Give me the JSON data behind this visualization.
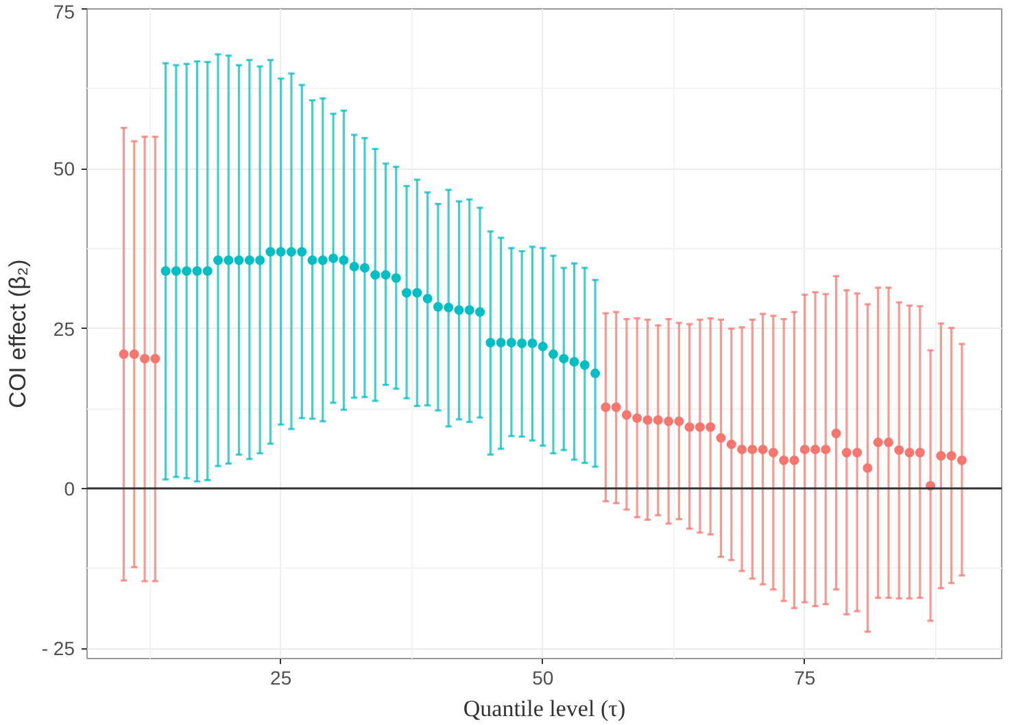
{
  "chart_data": {
    "type": "scatter",
    "xlabel": "Quantile level (τ)",
    "ylabel": "COI effect (β₂)",
    "xlim": [
      6.5,
      93.8
    ],
    "ylim": [
      -26.6,
      75
    ],
    "xticks": [
      25,
      50,
      75
    ],
    "yticks": [
      {
        "value": -25,
        "label": "- 25"
      },
      0,
      25,
      50,
      75
    ],
    "grid": true,
    "marker": "circle",
    "ref_lines": [
      {
        "axis": "y",
        "value": 0,
        "color": "#333333"
      }
    ],
    "series": [
      {
        "color": "#f8766d",
        "x": [
          10,
          11,
          12,
          13,
          56,
          57,
          58,
          59,
          60,
          61,
          62,
          63,
          64,
          65,
          66,
          67,
          68,
          69,
          70,
          71,
          72,
          73,
          74,
          75,
          76,
          77,
          78,
          79,
          80,
          81,
          82,
          83,
          84,
          85,
          86,
          87,
          88,
          89,
          90
        ],
        "values": [
          21.0,
          21.0,
          20.3,
          20.3,
          12.7,
          12.7,
          11.5,
          11.0,
          10.7,
          10.7,
          10.5,
          10.5,
          9.6,
          9.6,
          9.6,
          7.9,
          6.9,
          6.1,
          6.1,
          6.1,
          5.6,
          4.4,
          4.4,
          6.1,
          6.1,
          6.1,
          8.6,
          5.6,
          5.6,
          3.2,
          7.2,
          7.2,
          6.0,
          5.6,
          5.6,
          0.4,
          5.1,
          5.1,
          4.4
        ],
        "errors": [
          [
            -14.4,
            56.4
          ],
          [
            -12.3,
            54.3
          ],
          [
            -14.5,
            55.0
          ],
          [
            -14.5,
            55.0
          ],
          [
            -2.0,
            27.4
          ],
          [
            -2.3,
            27.6
          ],
          [
            -3.3,
            26.5
          ],
          [
            -4.5,
            26.6
          ],
          [
            -4.9,
            26.4
          ],
          [
            -4.2,
            25.5
          ],
          [
            -5.5,
            26.5
          ],
          [
            -4.8,
            25.9
          ],
          [
            -6.3,
            25.7
          ],
          [
            -6.9,
            26.4
          ],
          [
            -7.2,
            26.6
          ],
          [
            -10.7,
            26.4
          ],
          [
            -11.2,
            25.0
          ],
          [
            -12.9,
            25.2
          ],
          [
            -14.1,
            26.4
          ],
          [
            -15.0,
            27.3
          ],
          [
            -15.8,
            27.0
          ],
          [
            -17.6,
            26.5
          ],
          [
            -18.7,
            27.6
          ],
          [
            -17.8,
            30.3
          ],
          [
            -18.4,
            30.7
          ],
          [
            -18.1,
            30.4
          ],
          [
            -15.8,
            33.2
          ],
          [
            -19.7,
            31.0
          ],
          [
            -19.2,
            30.5
          ],
          [
            -22.4,
            28.8
          ],
          [
            -17.1,
            31.4
          ],
          [
            -17.1,
            31.4
          ],
          [
            -17.2,
            29.1
          ],
          [
            -17.2,
            28.6
          ],
          [
            -17.1,
            28.5
          ],
          [
            -20.7,
            21.6
          ],
          [
            -15.6,
            25.8
          ],
          [
            -14.8,
            25.1
          ],
          [
            -13.6,
            22.6
          ]
        ]
      },
      {
        "color": "#00bfc4",
        "x": [
          14,
          15,
          16,
          17,
          18,
          19,
          20,
          21,
          22,
          23,
          24,
          25,
          26,
          27,
          28,
          29,
          30,
          31,
          32,
          33,
          34,
          35,
          36,
          37,
          38,
          39,
          40,
          41,
          42,
          43,
          44,
          45,
          46,
          47,
          48,
          49,
          50,
          51,
          52,
          53,
          54,
          55
        ],
        "values": [
          34.0,
          34.0,
          34.0,
          34.0,
          34.0,
          35.7,
          35.7,
          35.7,
          35.7,
          35.7,
          37.0,
          37.0,
          37.0,
          37.0,
          35.7,
          35.7,
          36.0,
          35.7,
          34.7,
          34.5,
          33.4,
          33.4,
          32.9,
          30.6,
          30.6,
          29.7,
          28.4,
          28.3,
          27.9,
          27.9,
          27.6,
          22.8,
          22.8,
          22.8,
          22.7,
          22.7,
          22.2,
          21.0,
          20.3,
          19.8,
          19.3,
          18.0
        ],
        "errors": [
          [
            1.4,
            66.5
          ],
          [
            1.8,
            66.2
          ],
          [
            1.6,
            66.4
          ],
          [
            1.1,
            66.8
          ],
          [
            1.3,
            66.7
          ],
          [
            3.5,
            67.9
          ],
          [
            3.9,
            67.7
          ],
          [
            5.3,
            66.2
          ],
          [
            4.6,
            67.0
          ],
          [
            5.5,
            66.0
          ],
          [
            7.0,
            67.0
          ],
          [
            10.0,
            64.1
          ],
          [
            9.3,
            64.9
          ],
          [
            11.0,
            63.1
          ],
          [
            10.9,
            60.7
          ],
          [
            10.5,
            61.0
          ],
          [
            13.4,
            58.6
          ],
          [
            12.3,
            59.1
          ],
          [
            14.2,
            55.3
          ],
          [
            14.3,
            54.8
          ],
          [
            13.7,
            53.1
          ],
          [
            16.2,
            50.8
          ],
          [
            15.6,
            50.3
          ],
          [
            14.1,
            47.3
          ],
          [
            12.9,
            48.3
          ],
          [
            13.0,
            46.3
          ],
          [
            12.2,
            44.5
          ],
          [
            9.7,
            46.7
          ],
          [
            10.8,
            44.9
          ],
          [
            10.4,
            45.2
          ],
          [
            11.1,
            43.9
          ],
          [
            5.3,
            40.2
          ],
          [
            6.2,
            39.2
          ],
          [
            8.2,
            37.6
          ],
          [
            8.1,
            37.1
          ],
          [
            7.5,
            37.8
          ],
          [
            6.7,
            37.6
          ],
          [
            5.5,
            36.4
          ],
          [
            6.0,
            34.5
          ],
          [
            4.5,
            35.2
          ],
          [
            4.0,
            34.5
          ],
          [
            3.4,
            32.6
          ]
        ]
      }
    ]
  }
}
